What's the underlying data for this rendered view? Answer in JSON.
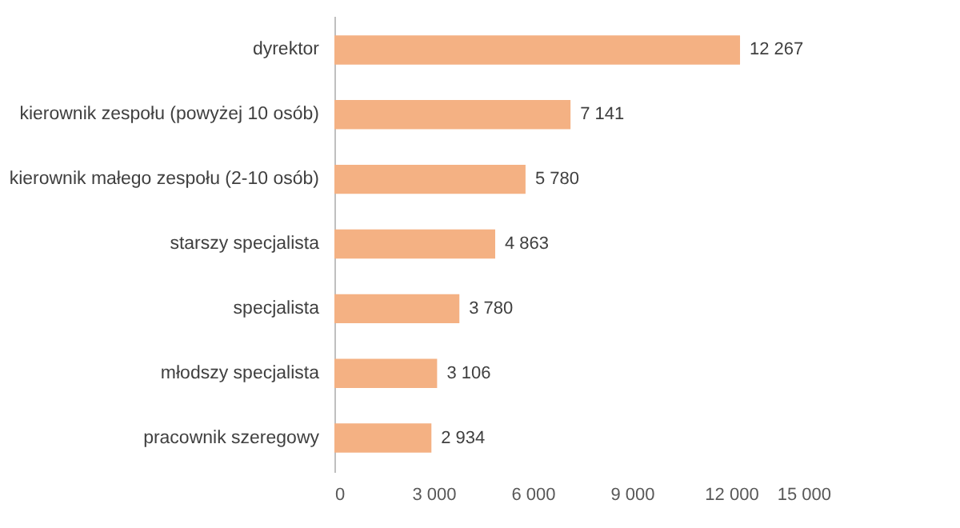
{
  "chart_data": {
    "type": "bar",
    "orientation": "horizontal",
    "categories": [
      "dyrektor",
      "kierownik zespołu (powyżej 10 osób)",
      "kierownik małego zespołu (2-10 osób)",
      "starszy specjalista",
      "specjalista",
      "młodszy specjalista",
      "pracownik szeregowy"
    ],
    "values": [
      12267,
      7141,
      5780,
      4863,
      3780,
      3106,
      2934
    ],
    "value_labels": [
      "12 267",
      "7 141",
      "5 780",
      "4 863",
      "3 780",
      "3 106",
      "2 934"
    ],
    "color": "#f4b183",
    "xlim": [
      0,
      15000
    ],
    "xticks": [
      0,
      {
        "value": 3000,
        "label": "3 000"
      },
      {
        "value": 6000,
        "label": "6 000"
      },
      {
        "value": 9000,
        "label": "9 000"
      },
      {
        "value": 12000,
        "label": "12 000"
      },
      {
        "value": 15000,
        "label": "15 000"
      }
    ],
    "grid": false
  }
}
